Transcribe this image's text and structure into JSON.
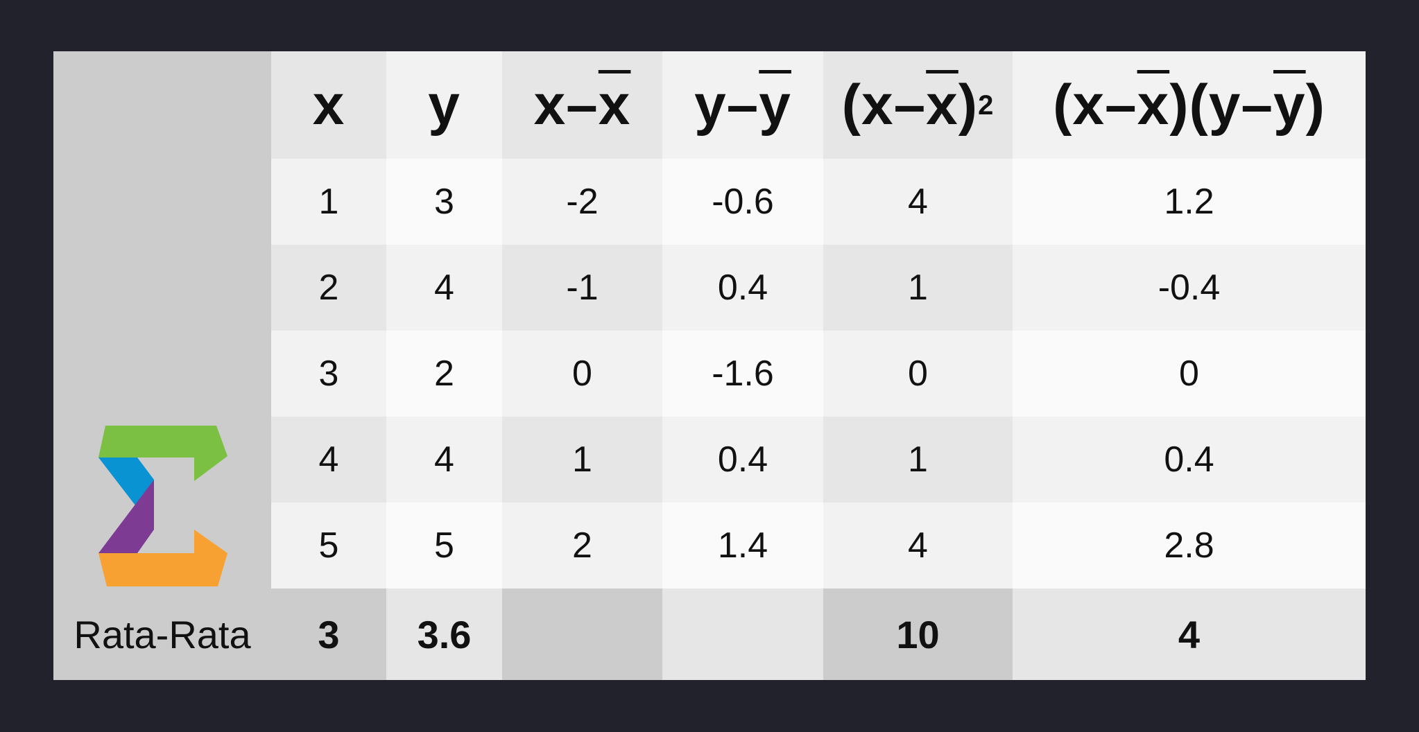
{
  "table": {
    "headers": {
      "x": "x",
      "y": "y",
      "dx": {
        "pre": "x–",
        "bar": "x"
      },
      "dy": {
        "pre": "y–",
        "bar": "y"
      },
      "sq": {
        "pre": "(x–",
        "bar": "x",
        "post": ")",
        "exp": "2"
      },
      "pr": {
        "p1": "(x–",
        "b1": "x",
        "p2": ")(y–",
        "b2": "y",
        "p3": ")"
      }
    },
    "rows": [
      {
        "x": "1",
        "y": "3",
        "dx": "-2",
        "dy": "-0.6",
        "sq": "4",
        "pr": "1.2"
      },
      {
        "x": "2",
        "y": "4",
        "dx": "-1",
        "dy": "0.4",
        "sq": "1",
        "pr": "-0.4"
      },
      {
        "x": "3",
        "y": "2",
        "dx": "0",
        "dy": "-1.6",
        "sq": "0",
        "pr": "0"
      },
      {
        "x": "4",
        "y": "4",
        "dx": "1",
        "dy": "0.4",
        "sq": "1",
        "pr": "0.4"
      },
      {
        "x": "5",
        "y": "5",
        "dx": "2",
        "dy": "1.4",
        "sq": "4",
        "pr": "2.8"
      }
    ],
    "footer": {
      "label": "Rata-Rata",
      "x": "3",
      "y": "3.6",
      "dx": "",
      "dy": "",
      "sq": "10",
      "pr": "4"
    }
  },
  "logo": {
    "icon": "sigma-logo-icon",
    "colors": {
      "green": "#7cc043",
      "blue": "#0a93d2",
      "purple": "#7e3b94",
      "orange": "#f7a132"
    }
  },
  "colors": {
    "background": "#22222c"
  }
}
